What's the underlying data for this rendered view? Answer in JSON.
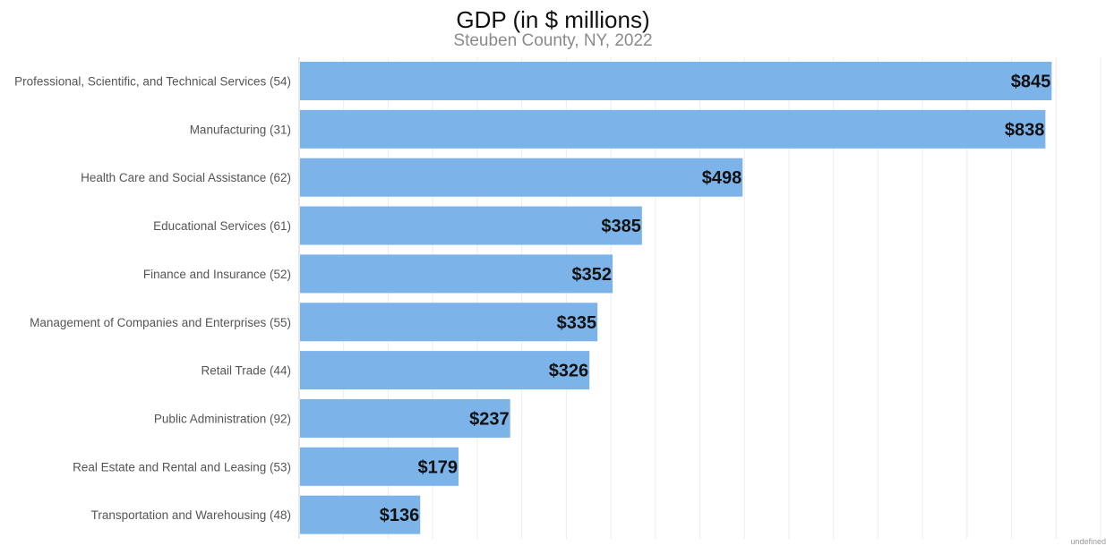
{
  "chart_data": {
    "type": "bar",
    "orientation": "horizontal",
    "title": "GDP (in $ millions)",
    "subtitle": "Steuben County, NY, 2022",
    "categories": [
      "Professional, Scientific, and Technical Services (54)",
      "Manufacturing (31)",
      "Health Care and Social Assistance (62)",
      "Educational Services (61)",
      "Finance and Insurance (52)",
      "Management of Companies and Enterprises (55)",
      "Retail Trade (44)",
      "Public Administration (92)",
      "Real Estate and Rental and Leasing (53)",
      "Transportation and Warehousing (48)"
    ],
    "values": [
      845,
      838,
      498,
      385,
      352,
      335,
      326,
      237,
      179,
      136
    ],
    "data_labels": [
      "$845",
      "$838",
      "$498",
      "$385",
      "$352",
      "$335",
      "$326",
      "$237",
      "$179",
      "$136"
    ],
    "xlim": [
      0,
      900
    ],
    "grid_step": 50,
    "grid": true,
    "legend": "none",
    "bar_color": "#7cb4ea",
    "footer_note": "undefined"
  }
}
